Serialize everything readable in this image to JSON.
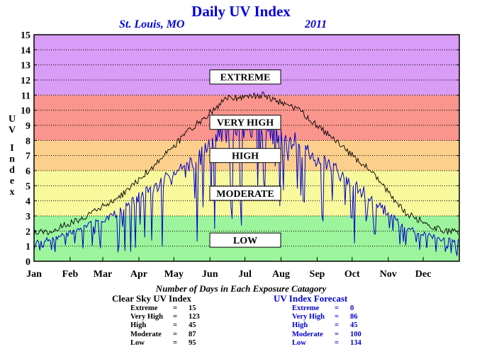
{
  "header": {
    "title": "Daily UV Index",
    "location": "St. Louis, MO",
    "year": "2011"
  },
  "chart_data": {
    "type": "line",
    "ylabel": "UV Index",
    "ylim": [
      0,
      15
    ],
    "yticks": [
      "0",
      "1",
      "2",
      "3",
      "4",
      "5",
      "6",
      "7",
      "8",
      "9",
      "10",
      "11",
      "12",
      "13",
      "14",
      "15"
    ],
    "months": [
      "Jan",
      "Feb",
      "Mar",
      "Apr",
      "May",
      "Jun",
      "Jul",
      "Aug",
      "Sep",
      "Oct",
      "Nov",
      "Dec"
    ],
    "grid": true,
    "bands": [
      {
        "name": "LOW",
        "from": 0,
        "to": 3,
        "color": "#9cf59c"
      },
      {
        "name": "MODERATE",
        "from": 3,
        "to": 6,
        "color": "#f8f89c"
      },
      {
        "name": "HIGH",
        "from": 6,
        "to": 8,
        "color": "#fcd08c"
      },
      {
        "name": "VERY HIGH",
        "from": 8,
        "to": 11,
        "color": "#f9958c"
      },
      {
        "name": "EXTREME",
        "from": 11,
        "to": 15,
        "color": "#d99cf7"
      }
    ],
    "band_labels": [
      {
        "text": "EXTREME",
        "y": 12.2
      },
      {
        "text": "VERY HIGH",
        "y": 9.2
      },
      {
        "text": "HIGH",
        "y": 7.0
      },
      {
        "text": "MODERATE",
        "y": 4.5
      },
      {
        "text": "LOW",
        "y": 1.4
      }
    ],
    "series": [
      {
        "color": "#000000",
        "monthly_clear_sky_peak": [
          2.0,
          3.0,
          4.3,
          6.5,
          8.8,
          10.8,
          11.0,
          10.0,
          8.0,
          6.0,
          3.2,
          2.0
        ]
      },
      {
        "color": "#0000cc",
        "monthly_forecast_typical": [
          1.6,
          2.5,
          3.6,
          5.5,
          7.0,
          9.6,
          9.8,
          8.4,
          6.6,
          4.6,
          2.4,
          1.6
        ],
        "monthly_forecast_min": [
          0.5,
          0.4,
          0.5,
          0.8,
          1.2,
          2.0,
          3.0,
          3.5,
          1.8,
          1.0,
          0.4,
          0.3
        ]
      }
    ]
  },
  "stats": {
    "title": "Number of Days in Each Exposure Catagory",
    "clear_sky": {
      "header": "Clear Sky UV Index",
      "rows": [
        {
          "label": "Extreme",
          "eq": "=",
          "value": "15"
        },
        {
          "label": "Very High",
          "eq": "=",
          "value": "123"
        },
        {
          "label": "High",
          "eq": "=",
          "value": "45"
        },
        {
          "label": "Moderate",
          "eq": "=",
          "value": "87"
        },
        {
          "label": "Low",
          "eq": "=",
          "value": "95"
        }
      ]
    },
    "forecast": {
      "header": "UV Index Forecast",
      "rows": [
        {
          "label": "Extreme",
          "eq": "=",
          "value": "0"
        },
        {
          "label": "Very High",
          "eq": "=",
          "value": "86"
        },
        {
          "label": "High",
          "eq": "=",
          "value": "45"
        },
        {
          "label": "Moderate",
          "eq": "=",
          "value": "100"
        },
        {
          "label": "Low",
          "eq": "=",
          "value": "134"
        }
      ]
    }
  }
}
